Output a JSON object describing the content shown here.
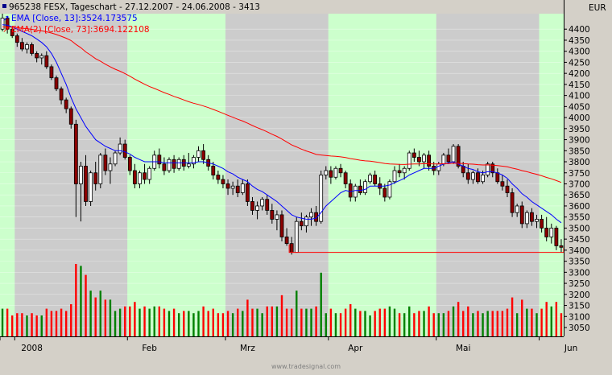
{
  "header": {
    "title": "965238  FESX, Tageschart - 27.12.2007 - 24.06.2008 - 3413",
    "ema13": "EMA [Close, 13]:3524.173575",
    "ema73": "EMA(2) [Close, 73]:3694.122108"
  },
  "currency": "EUR",
  "footer": "www.tradesignal.com",
  "colors": {
    "candle_up": "#ffffff",
    "candle_down": "#8b0000",
    "ema13": "#0000ff",
    "ema73": "#ff0000",
    "support": "#ff0000",
    "vol_up": "#008000",
    "vol_down": "#ff0000",
    "band_light": "#ccffcc",
    "band_gray": "#cccccc"
  },
  "chart_data": {
    "type": "candlestick",
    "title": "FESX, Tageschart",
    "date_range": "27.12.2007 - 24.06.2008",
    "last": 3413,
    "y_ticks": [
      4400,
      4350,
      4300,
      4250,
      4200,
      4150,
      4100,
      4050,
      4000,
      3950,
      3900,
      3850,
      3800,
      3750,
      3700,
      3650,
      3600,
      3550,
      3500,
      3450,
      3400,
      3350,
      3300,
      3250,
      3200,
      3150,
      3100,
      3050
    ],
    "ylim": [
      3010,
      4470
    ],
    "x_labels": [
      "2008",
      "Feb",
      "Mrz",
      "Apr",
      "Mai",
      "Jun"
    ],
    "x_label_bars": [
      6,
      30,
      50,
      72,
      94,
      116
    ],
    "month_bands": [
      [
        0,
        2,
        "light"
      ],
      [
        3,
        25,
        "gray"
      ],
      [
        26,
        45,
        "light"
      ],
      [
        46,
        66,
        "gray"
      ],
      [
        67,
        88,
        "light"
      ],
      [
        89,
        109,
        "gray"
      ],
      [
        110,
        126,
        "light"
      ]
    ],
    "support_level": 3390,
    "support_from_bar": 59,
    "series": [
      {
        "name": "EMA [Close, 13]",
        "last": 3524.17
      },
      {
        "name": "EMA(2) [Close, 73]",
        "last": 3694.12
      }
    ],
    "ohlc": [
      [
        4400,
        4470,
        4390,
        4450
      ],
      [
        4450,
        4460,
        4380,
        4400
      ],
      [
        4400,
        4410,
        4360,
        4370
      ],
      [
        4370,
        4380,
        4320,
        4340
      ],
      [
        4340,
        4360,
        4300,
        4310
      ],
      [
        4310,
        4340,
        4290,
        4330
      ],
      [
        4330,
        4340,
        4280,
        4290
      ],
      [
        4290,
        4300,
        4250,
        4270
      ],
      [
        4270,
        4290,
        4240,
        4280
      ],
      [
        4280,
        4300,
        4220,
        4230
      ],
      [
        4230,
        4240,
        4170,
        4180
      ],
      [
        4180,
        4190,
        4120,
        4130
      ],
      [
        4130,
        4140,
        4060,
        4080
      ],
      [
        4080,
        4090,
        4020,
        4040
      ],
      [
        4040,
        4050,
        3950,
        3970
      ],
      [
        3970,
        3990,
        3550,
        3700
      ],
      [
        3700,
        3800,
        3530,
        3780
      ],
      [
        3780,
        3830,
        3600,
        3620
      ],
      [
        3620,
        3760,
        3600,
        3750
      ],
      [
        3750,
        3800,
        3670,
        3700
      ],
      [
        3700,
        3840,
        3680,
        3830
      ],
      [
        3830,
        3860,
        3740,
        3760
      ],
      [
        3760,
        3820,
        3700,
        3790
      ],
      [
        3790,
        3850,
        3780,
        3840
      ],
      [
        3840,
        3910,
        3830,
        3880
      ],
      [
        3880,
        3900,
        3810,
        3820
      ],
      [
        3820,
        3830,
        3740,
        3760
      ],
      [
        3760,
        3790,
        3680,
        3700
      ],
      [
        3700,
        3760,
        3680,
        3750
      ],
      [
        3750,
        3790,
        3700,
        3720
      ],
      [
        3720,
        3780,
        3700,
        3770
      ],
      [
        3770,
        3850,
        3760,
        3830
      ],
      [
        3830,
        3860,
        3770,
        3790
      ],
      [
        3790,
        3820,
        3740,
        3760
      ],
      [
        3760,
        3820,
        3750,
        3810
      ],
      [
        3810,
        3830,
        3750,
        3770
      ],
      [
        3770,
        3820,
        3760,
        3810
      ],
      [
        3810,
        3830,
        3760,
        3780
      ],
      [
        3780,
        3840,
        3770,
        3790
      ],
      [
        3790,
        3830,
        3770,
        3820
      ],
      [
        3820,
        3870,
        3800,
        3850
      ],
      [
        3850,
        3880,
        3790,
        3810
      ],
      [
        3810,
        3830,
        3760,
        3780
      ],
      [
        3780,
        3800,
        3720,
        3740
      ],
      [
        3740,
        3760,
        3700,
        3720
      ],
      [
        3720,
        3740,
        3680,
        3700
      ],
      [
        3700,
        3720,
        3650,
        3680
      ],
      [
        3680,
        3710,
        3650,
        3690
      ],
      [
        3690,
        3720,
        3640,
        3660
      ],
      [
        3660,
        3720,
        3650,
        3700
      ],
      [
        3700,
        3720,
        3600,
        3620
      ],
      [
        3620,
        3640,
        3560,
        3580
      ],
      [
        3580,
        3620,
        3540,
        3600
      ],
      [
        3600,
        3640,
        3580,
        3630
      ],
      [
        3630,
        3650,
        3560,
        3580
      ],
      [
        3580,
        3610,
        3520,
        3540
      ],
      [
        3540,
        3580,
        3490,
        3560
      ],
      [
        3560,
        3580,
        3440,
        3460
      ],
      [
        3460,
        3500,
        3420,
        3430
      ],
      [
        3430,
        3460,
        3380,
        3390
      ],
      [
        3390,
        3550,
        3390,
        3530
      ],
      [
        3530,
        3570,
        3490,
        3510
      ],
      [
        3510,
        3560,
        3480,
        3550
      ],
      [
        3550,
        3590,
        3510,
        3570
      ],
      [
        3570,
        3600,
        3510,
        3530
      ],
      [
        3530,
        3760,
        3520,
        3740
      ],
      [
        3740,
        3780,
        3720,
        3760
      ],
      [
        3760,
        3780,
        3700,
        3730
      ],
      [
        3730,
        3780,
        3720,
        3770
      ],
      [
        3770,
        3790,
        3730,
        3750
      ],
      [
        3750,
        3760,
        3680,
        3700
      ],
      [
        3700,
        3720,
        3620,
        3640
      ],
      [
        3640,
        3700,
        3620,
        3690
      ],
      [
        3690,
        3720,
        3650,
        3660
      ],
      [
        3660,
        3720,
        3650,
        3710
      ],
      [
        3710,
        3750,
        3700,
        3740
      ],
      [
        3740,
        3760,
        3690,
        3700
      ],
      [
        3700,
        3730,
        3650,
        3680
      ],
      [
        3680,
        3700,
        3620,
        3640
      ],
      [
        3640,
        3720,
        3630,
        3710
      ],
      [
        3710,
        3780,
        3700,
        3760
      ],
      [
        3760,
        3790,
        3730,
        3750
      ],
      [
        3750,
        3780,
        3720,
        3770
      ],
      [
        3770,
        3850,
        3760,
        3840
      ],
      [
        3840,
        3860,
        3800,
        3820
      ],
      [
        3820,
        3850,
        3780,
        3800
      ],
      [
        3800,
        3840,
        3770,
        3830
      ],
      [
        3830,
        3850,
        3760,
        3780
      ],
      [
        3780,
        3800,
        3740,
        3760
      ],
      [
        3760,
        3800,
        3740,
        3790
      ],
      [
        3790,
        3840,
        3780,
        3830
      ],
      [
        3830,
        3860,
        3790,
        3800
      ],
      [
        3800,
        3880,
        3790,
        3870
      ],
      [
        3870,
        3880,
        3770,
        3780
      ],
      [
        3780,
        3800,
        3730,
        3750
      ],
      [
        3750,
        3790,
        3700,
        3720
      ],
      [
        3720,
        3760,
        3700,
        3750
      ],
      [
        3750,
        3770,
        3700,
        3710
      ],
      [
        3710,
        3760,
        3700,
        3740
      ],
      [
        3740,
        3800,
        3730,
        3790
      ],
      [
        3790,
        3800,
        3730,
        3750
      ],
      [
        3750,
        3770,
        3700,
        3710
      ],
      [
        3710,
        3740,
        3670,
        3690
      ],
      [
        3690,
        3720,
        3640,
        3660
      ],
      [
        3660,
        3680,
        3550,
        3570
      ],
      [
        3570,
        3610,
        3550,
        3600
      ],
      [
        3600,
        3620,
        3500,
        3520
      ],
      [
        3520,
        3580,
        3500,
        3570
      ],
      [
        3570,
        3590,
        3510,
        3530
      ],
      [
        3530,
        3560,
        3500,
        3540
      ],
      [
        3540,
        3560,
        3480,
        3500
      ],
      [
        3500,
        3550,
        3440,
        3460
      ],
      [
        3460,
        3520,
        3430,
        3500
      ],
      [
        3500,
        3510,
        3400,
        3420
      ],
      [
        3420,
        3450,
        3390,
        3413
      ]
    ],
    "ema13": [
      4420,
      4418,
      4410,
      4400,
      4390,
      4380,
      4370,
      4355,
      4340,
      4320,
      4290,
      4250,
      4200,
      4150,
      4090,
      4040,
      4000,
      3960,
      3930,
      3900,
      3885,
      3870,
      3860,
      3850,
      3850,
      3845,
      3835,
      3820,
      3810,
      3800,
      3800,
      3800,
      3800,
      3795,
      3795,
      3795,
      3795,
      3795,
      3795,
      3795,
      3800,
      3800,
      3795,
      3790,
      3780,
      3770,
      3755,
      3745,
      3730,
      3720,
      3710,
      3690,
      3675,
      3665,
      3650,
      3635,
      3620,
      3600,
      3580,
      3560,
      3550,
      3545,
      3540,
      3540,
      3545,
      3570,
      3600,
      3620,
      3640,
      3660,
      3670,
      3665,
      3670,
      3670,
      3675,
      3690,
      3690,
      3690,
      3690,
      3695,
      3705,
      3715,
      3725,
      3740,
      3750,
      3760,
      3770,
      3770,
      3770,
      3780,
      3790,
      3795,
      3800,
      3790,
      3780,
      3770,
      3765,
      3755,
      3750,
      3755,
      3755,
      3750,
      3740,
      3725,
      3700,
      3680,
      3655,
      3640,
      3620,
      3605,
      3590,
      3575,
      3560,
      3540,
      3524
    ]
  }
}
